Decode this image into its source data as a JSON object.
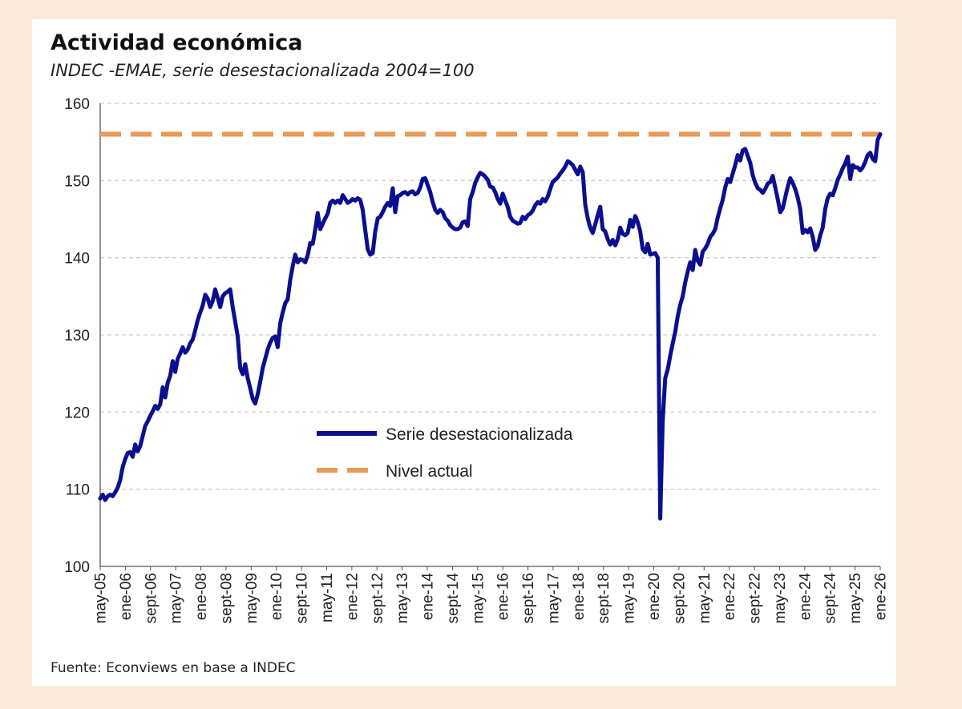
{
  "chart_data": {
    "type": "line",
    "title": "Actividad económica",
    "subtitle": "INDEC -EMAE, serie desestacionalizada 2004=100",
    "source": "Fuente: Econviews en base a INDEC",
    "xlabel": "",
    "ylabel": "",
    "ylim": [
      100,
      160
    ],
    "yticks": [
      100,
      110,
      120,
      130,
      140,
      150,
      160
    ],
    "grid": true,
    "legend_position": "center-left",
    "x_tick_labels": [
      "may-05",
      "ene-06",
      "sept-06",
      "may-07",
      "ene-08",
      "sept-08",
      "may-09",
      "ene-10",
      "sept-10",
      "may-11",
      "ene-12",
      "sept-12",
      "may-13",
      "ene-14",
      "sept-14",
      "may-15",
      "ene-16",
      "sept-16",
      "may-17",
      "ene-18",
      "sept-18",
      "may-19",
      "ene-20",
      "sept-20",
      "may-21",
      "ene-22",
      "sept-22",
      "may-23",
      "ene-24",
      "sept-24",
      "may-25",
      "ene-26"
    ],
    "series": [
      {
        "name": "Serie desestacionalizada",
        "color": "#0b0f8f",
        "style": "solid",
        "x_range": [
          "may-05",
          "ene-26"
        ],
        "values": [
          108.8,
          109.3,
          108.6,
          109.1,
          109.3,
          109.1,
          109.6,
          110.2,
          111.2,
          112.9,
          113.9,
          114.7,
          114.8,
          114.2,
          115.8,
          114.9,
          115.6,
          116.9,
          118.2,
          118.8,
          119.5,
          120.1,
          120.8,
          120.4,
          121.0,
          123.2,
          121.9,
          123.8,
          124.7,
          126.6,
          125.2,
          126.9,
          127.6,
          128.4,
          127.7,
          128.1,
          128.9,
          129.4,
          130.6,
          131.9,
          132.9,
          133.8,
          135.2,
          134.7,
          133.6,
          134.4,
          135.9,
          134.8,
          133.6,
          135.0,
          135.4,
          135.6,
          135.9,
          133.6,
          131.7,
          129.8,
          125.7,
          124.9,
          126.2,
          124.4,
          123.1,
          121.7,
          121.1,
          122.3,
          123.9,
          125.7,
          126.9,
          128.1,
          129.0,
          129.6,
          129.8,
          128.4,
          131.5,
          132.9,
          134.1,
          134.6,
          137.1,
          138.9,
          140.4,
          139.4,
          139.8,
          139.7,
          139.4,
          140.3,
          141.9,
          141.8,
          143.6,
          145.8,
          143.7,
          144.4,
          145.1,
          145.7,
          147.1,
          147.4,
          147.1,
          147.4,
          147.1,
          148.1,
          147.6,
          147.1,
          147.3,
          147.6,
          147.4,
          147.7,
          147.5,
          146.2,
          143.6,
          141.1,
          140.4,
          140.6,
          143.4,
          145.1,
          145.3,
          145.9,
          146.6,
          147.1,
          146.7,
          149.0,
          145.9,
          148.0,
          148.1,
          148.4,
          148.5,
          148.2,
          148.5,
          148.6,
          148.2,
          148.4,
          149.1,
          150.2,
          150.3,
          149.4,
          148.5,
          147.2,
          146.2,
          145.8,
          146.2,
          145.9,
          145.1,
          144.8,
          144.2,
          143.9,
          143.7,
          143.7,
          143.9,
          144.6,
          144.7,
          144.1,
          147.6,
          148.5,
          149.7,
          150.4,
          151.0,
          150.8,
          150.5,
          150.1,
          149.2,
          149.1,
          148.5,
          147.6,
          147.0,
          148.3,
          147.4,
          146.6,
          145.3,
          144.8,
          144.6,
          144.4,
          144.5,
          145.3,
          145.0,
          145.5,
          145.7,
          146.1,
          146.8,
          147.2,
          147.0,
          147.6,
          147.3,
          147.9,
          148.9,
          149.8,
          150.1,
          150.4,
          150.9,
          151.3,
          151.8,
          152.5,
          152.3,
          152.0,
          151.4,
          150.8,
          151.8,
          151.1,
          146.9,
          145.1,
          143.9,
          143.2,
          144.3,
          145.5,
          146.6,
          143.7,
          143.4,
          142.4,
          141.7,
          142.3,
          141.6,
          142.4,
          143.9,
          143.1,
          142.9,
          143.2,
          144.9,
          144.0,
          145.4,
          144.6,
          143.4,
          141.1,
          140.7,
          141.8,
          140.4,
          140.5,
          140.6,
          140.0,
          106.2,
          118.9,
          124.4,
          125.5,
          127.3,
          128.9,
          130.4,
          132.4,
          133.9,
          135.0,
          136.8,
          138.2,
          139.4,
          138.4,
          141.0,
          139.6,
          139.1,
          140.8,
          141.2,
          141.8,
          142.7,
          143.1,
          143.7,
          145.2,
          146.4,
          147.5,
          149.1,
          150.2,
          149.8,
          150.9,
          152.0,
          153.3,
          152.6,
          153.9,
          154.1,
          153.2,
          152.3,
          150.7,
          149.7,
          149.0,
          148.8,
          148.4,
          148.9,
          149.6,
          149.8,
          150.6,
          149.1,
          147.6,
          145.9,
          146.4,
          147.8,
          149.2,
          150.3,
          149.7,
          148.9,
          147.8,
          146.3,
          143.2,
          143.6,
          143.3,
          143.8,
          142.7,
          141.0,
          141.5,
          142.9,
          143.9,
          146.3,
          147.7,
          148.3,
          148.1,
          149.0,
          150.1,
          150.8,
          151.6,
          152.2,
          153.1,
          150.2,
          152.0,
          151.7,
          151.7,
          151.3,
          151.7,
          152.4,
          153.3,
          153.6,
          152.8,
          152.5,
          155.3,
          156.0
        ]
      },
      {
        "name": "Nivel actual",
        "color": "#e89a58",
        "style": "dashed",
        "value": 156
      }
    ]
  }
}
